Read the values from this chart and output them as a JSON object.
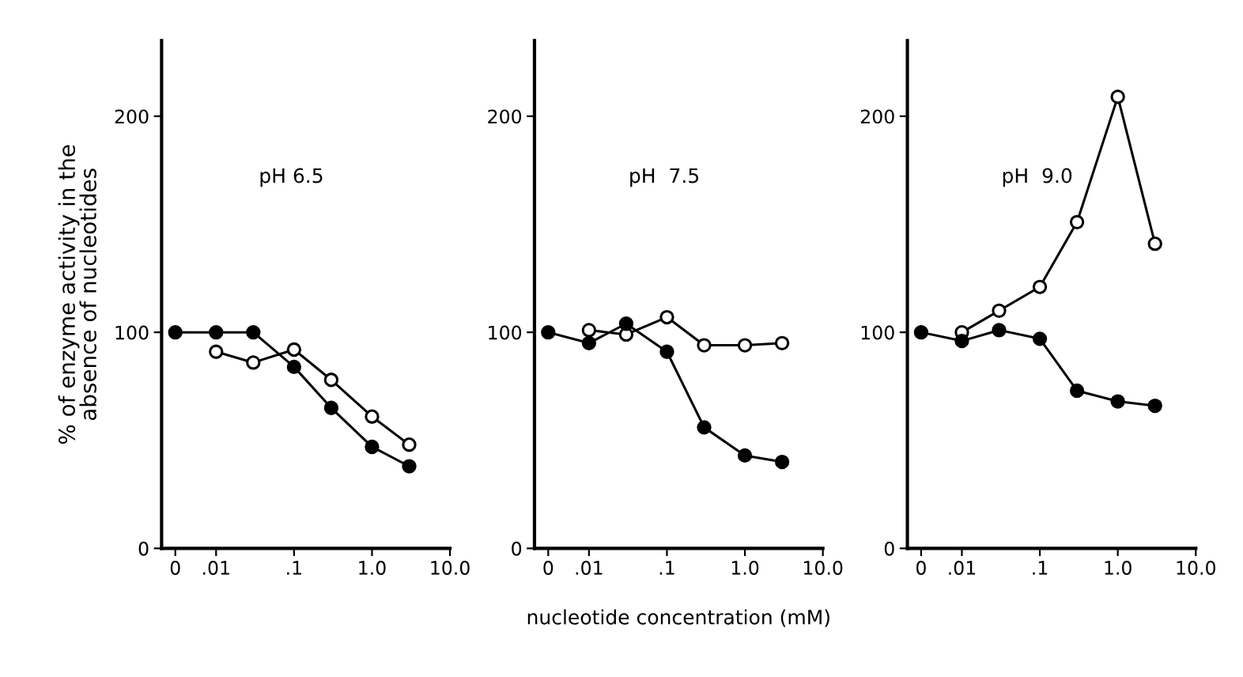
{
  "chart_data": [
    {
      "type": "line",
      "ylabel": "% of enzyme activity in the\nabsence of nucleotides",
      "annotations": [
        "pH 6.5"
      ],
      "x": [
        0.003,
        0.01,
        0.03,
        0.1,
        0.3,
        1.0,
        3.0
      ],
      "xlim": [
        0.002,
        10
      ],
      "xticks": [
        {
          "value": 0.003,
          "label": "0"
        },
        {
          "value": 0.01,
          "label": ".01"
        },
        {
          "value": 0.1,
          "label": ".1"
        },
        {
          "value": 1,
          "label": "1.0"
        },
        {
          "value": 10,
          "label": "10.0"
        }
      ],
      "log": "x",
      "ylim": [
        0,
        235
      ],
      "yticks": [
        0,
        100,
        200
      ],
      "marker": "circle",
      "grid": false,
      "legend": false,
      "series": [
        {
          "color": "#000000",
          "values": [
            null,
            91,
            86,
            92,
            78,
            61,
            48
          ]
        },
        {
          "color": "#000000",
          "values": [
            100,
            100,
            100,
            84,
            65,
            47,
            38
          ]
        }
      ]
    },
    {
      "type": "line",
      "xlabel": "nucleotide concentration (mM)",
      "annotations": [
        "pH  7.5"
      ],
      "x": [
        0.003,
        0.01,
        0.03,
        0.1,
        0.3,
        1.0,
        3.0
      ],
      "xlim": [
        0.002,
        10
      ],
      "xticks": [
        {
          "value": 0.003,
          "label": "0"
        },
        {
          "value": 0.01,
          "label": ".01"
        },
        {
          "value": 0.1,
          "label": ".1"
        },
        {
          "value": 1,
          "label": "1.0"
        },
        {
          "value": 10,
          "label": "10.0"
        }
      ],
      "log": "x",
      "ylim": [
        0,
        235
      ],
      "yticks": [
        0,
        100,
        200
      ],
      "marker": "circle",
      "grid": false,
      "legend": false,
      "series": [
        {
          "color": "#000000",
          "values": [
            null,
            101,
            99,
            107,
            94,
            94,
            95
          ]
        },
        {
          "color": "#000000",
          "values": [
            100,
            95,
            104,
            91,
            56,
            43,
            40
          ]
        }
      ]
    },
    {
      "type": "line",
      "annotations": [
        "pH  9.0"
      ],
      "x": [
        0.003,
        0.01,
        0.03,
        0.1,
        0.3,
        1.0,
        3.0
      ],
      "xlim": [
        0.002,
        10
      ],
      "xticks": [
        {
          "value": 0.003,
          "label": "0"
        },
        {
          "value": 0.01,
          "label": ".01"
        },
        {
          "value": 0.1,
          "label": ".1"
        },
        {
          "value": 1,
          "label": "1.0"
        },
        {
          "value": 10,
          "label": "10.0"
        }
      ],
      "log": "x",
      "ylim": [
        0,
        235
      ],
      "yticks": [
        0,
        100,
        200
      ],
      "marker": "circle",
      "grid": false,
      "legend": false,
      "series": [
        {
          "color": "#000000",
          "values": [
            null,
            100,
            110,
            121,
            151,
            209,
            141
          ]
        },
        {
          "color": "#000000",
          "values": [
            100,
            96,
            101,
            97,
            73,
            68,
            66
          ]
        }
      ]
    }
  ]
}
